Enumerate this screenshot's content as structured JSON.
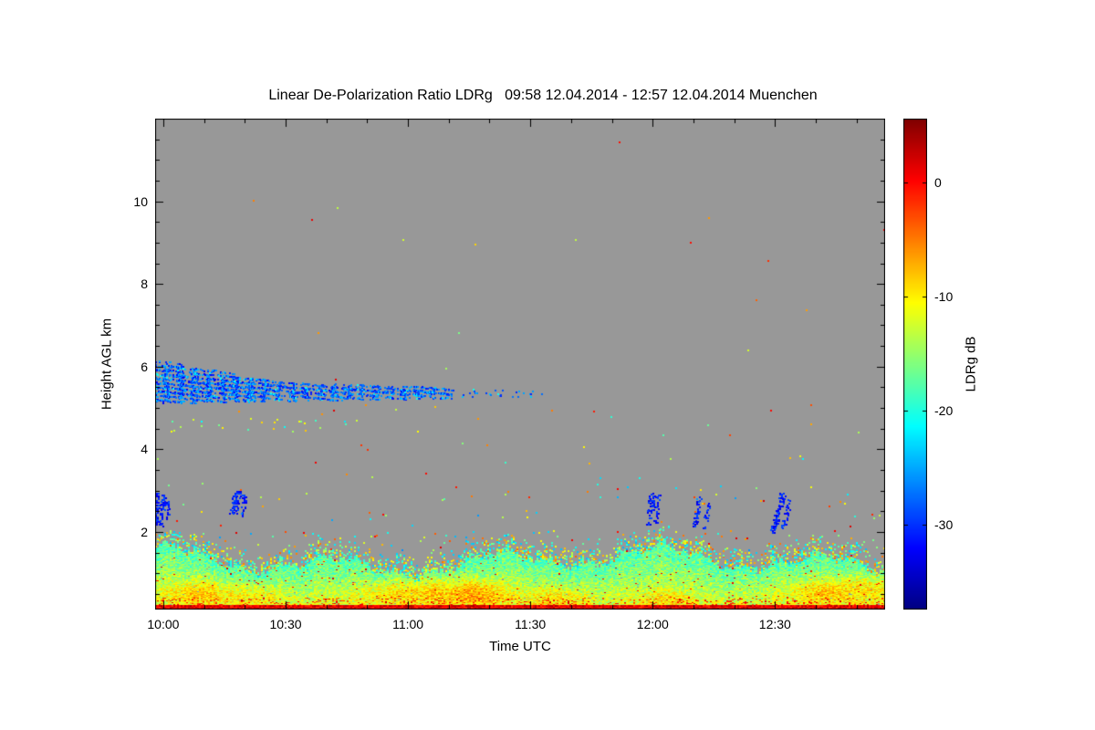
{
  "chart_data": {
    "type": "heatmap",
    "title": "Linear De-Polarization Ratio LDRg   09:58 12.04.2014 - 12:57 12.04.2014 Muenchen",
    "xlabel": "Time UTC",
    "ylabel": "Height AGL km",
    "x_range_hours": [
      9.9667,
      12.95
    ],
    "y_range_km": [
      0.12,
      12.0
    ],
    "x_ticks": [
      {
        "value": 10.0,
        "label": "10:00"
      },
      {
        "value": 10.5,
        "label": "10:30"
      },
      {
        "value": 11.0,
        "label": "11:00"
      },
      {
        "value": 11.5,
        "label": "11:30"
      },
      {
        "value": 12.0,
        "label": "12:00"
      },
      {
        "value": 12.5,
        "label": "12:30"
      }
    ],
    "x_minor_step": 0.1666667,
    "y_ticks": [
      {
        "value": 2,
        "label": "2"
      },
      {
        "value": 4,
        "label": "4"
      },
      {
        "value": 6,
        "label": "6"
      },
      {
        "value": 8,
        "label": "8"
      },
      {
        "value": 10,
        "label": "10"
      }
    ],
    "y_minor_step": 0.5,
    "background_color": "#989898",
    "colormap": "jet",
    "colorbar": {
      "label": "LDRg dB",
      "vmin": -37.4,
      "vmax": 5.6,
      "ticks": [
        {
          "value": 0,
          "label": "0"
        },
        {
          "value": -10,
          "label": "-10"
        },
        {
          "value": -20,
          "label": "-20"
        },
        {
          "value": -30,
          "label": "-30"
        }
      ]
    },
    "features": {
      "cloud_segments": [
        {
          "t0": 9.967,
          "t1": 10.47,
          "top0": 6.18,
          "top1": 5.65,
          "bot0": 5.12,
          "bot1": 5.18,
          "density": 0.6,
          "v_center": -28,
          "v_spread": 9
        },
        {
          "t0": 10.47,
          "t1": 11.18,
          "top0": 5.65,
          "top1": 5.5,
          "bot0": 5.18,
          "bot1": 5.25,
          "density": 0.48,
          "v_center": -28,
          "v_spread": 8
        },
        {
          "t0": 11.18,
          "t1": 11.58,
          "top0": 5.5,
          "top1": 5.42,
          "bot0": 5.26,
          "bot1": 5.3,
          "density": 0.06,
          "v_center": -27,
          "v_spread": 8
        }
      ],
      "streak_v_center": -31,
      "streak_v_spread": 5,
      "streaks": [
        {
          "t_top": 9.975,
          "h_top": 2.95,
          "t_bot": 9.968,
          "h_bot": 2.2,
          "w": 0.01,
          "density": 0.8
        },
        {
          "t_top": 10.0,
          "h_top": 2.9,
          "t_bot": 9.99,
          "h_bot": 2.15,
          "w": 0.008,
          "density": 0.7
        },
        {
          "t_top": 10.02,
          "h_top": 2.75,
          "t_bot": 10.012,
          "h_bot": 2.3,
          "w": 0.006,
          "density": 0.6
        },
        {
          "t_top": 10.3,
          "h_top": 2.98,
          "t_bot": 10.285,
          "h_bot": 2.45,
          "w": 0.014,
          "density": 0.85
        },
        {
          "t_top": 10.33,
          "h_top": 2.9,
          "t_bot": 10.32,
          "h_bot": 2.35,
          "w": 0.006,
          "density": 0.5
        },
        {
          "t_top": 11.995,
          "h_top": 2.95,
          "t_bot": 11.985,
          "h_bot": 2.2,
          "w": 0.01,
          "density": 0.85
        },
        {
          "t_top": 12.02,
          "h_top": 2.9,
          "t_bot": 12.01,
          "h_bot": 2.25,
          "w": 0.008,
          "density": 0.7
        },
        {
          "t_top": 12.19,
          "h_top": 2.85,
          "t_bot": 12.17,
          "h_bot": 2.15,
          "w": 0.008,
          "density": 0.75
        },
        {
          "t_top": 12.225,
          "h_top": 2.7,
          "t_bot": 12.21,
          "h_bot": 2.1,
          "w": 0.006,
          "density": 0.6
        },
        {
          "t_top": 12.53,
          "h_top": 2.95,
          "t_bot": 12.49,
          "h_bot": 2.0,
          "w": 0.012,
          "density": 0.85
        },
        {
          "t_top": 12.56,
          "h_top": 2.8,
          "t_bot": 12.53,
          "h_bot": 2.1,
          "w": 0.008,
          "density": 0.6
        }
      ],
      "boundary_layer": {
        "top_mean": 1.3,
        "v_shallow": -11,
        "v_deep": -18,
        "v_noise": 3.5,
        "fringe_extent": 0.5
      },
      "hot_patches": [
        {
          "t": 10.15,
          "h": 0.55,
          "rt": 0.13,
          "rh": 0.3,
          "dv": 5
        },
        {
          "t": 10.38,
          "h": 0.5,
          "rt": 0.1,
          "rh": 0.25,
          "dv": 3.5
        },
        {
          "t": 11.05,
          "h": 0.6,
          "rt": 0.22,
          "rh": 0.35,
          "dv": 6
        },
        {
          "t": 11.3,
          "h": 0.55,
          "rt": 0.12,
          "rh": 0.3,
          "dv": 4.5
        },
        {
          "t": 11.6,
          "h": 0.45,
          "rt": 0.12,
          "rh": 0.25,
          "dv": 3.5
        },
        {
          "t": 12.05,
          "h": 0.4,
          "rt": 0.1,
          "rh": 0.2,
          "dv": 3
        },
        {
          "t": 12.72,
          "h": 0.6,
          "rt": 0.18,
          "rh": 0.3,
          "dv": 5
        },
        {
          "t": 12.92,
          "h": 0.75,
          "rt": 0.1,
          "rh": 0.3,
          "dv": 4
        }
      ],
      "ground_line": {
        "h0": 0.12,
        "h1": 0.23,
        "v_min": -2,
        "v_max": 4
      },
      "speckle_band": {
        "h0": 1.55,
        "h1": 2.05,
        "per_column_probability": 0.3,
        "v_min": -26,
        "v_max": 2
      },
      "scattered_speckles": [
        {
          "t0": 9.967,
          "t1": 12.95,
          "h0": 2.05,
          "h1": 3.2,
          "count": 60,
          "v_min": -26,
          "v_max": 3
        },
        {
          "t0": 9.967,
          "t1": 12.95,
          "h0": 3.2,
          "h1": 5.1,
          "count": 40,
          "v_min": -24,
          "v_max": 2
        },
        {
          "t0": 9.967,
          "t1": 10.75,
          "h0": 4.45,
          "h1": 4.75,
          "count": 22,
          "v_min": -22,
          "v_max": -8
        },
        {
          "t0": 10.2,
          "t1": 12.95,
          "h0": 5.1,
          "h1": 11.6,
          "count": 18,
          "v_min": -18,
          "v_max": 2
        }
      ]
    }
  }
}
